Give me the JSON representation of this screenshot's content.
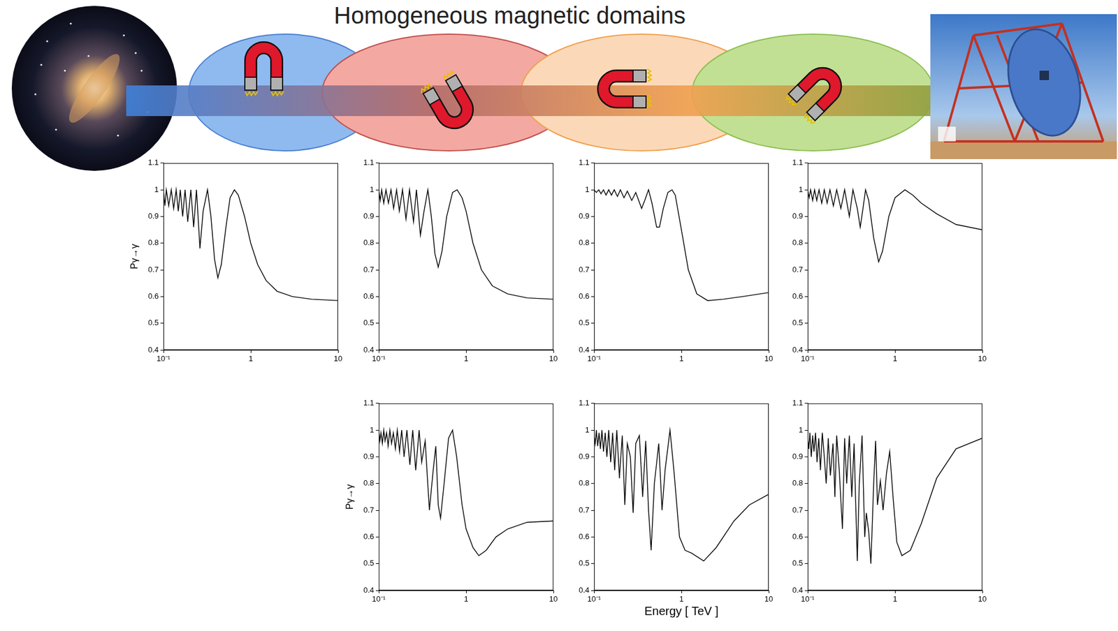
{
  "title": "Homogeneous magnetic domains",
  "chart_data": [
    {
      "type": "line",
      "ylabel": "Pγ→γ",
      "color": "#000000",
      "log": "x",
      "grid": false,
      "xlim": [
        0.1,
        10
      ],
      "xticks": [
        {
          "value": 0.1,
          "label": "10⁻¹"
        },
        1,
        10
      ],
      "ylim": [
        0.4,
        1.1
      ],
      "yticks": [
        0.4,
        0.5,
        0.6,
        0.7,
        0.8,
        0.9,
        1,
        1.1
      ],
      "x": [
        0.1,
        0.104,
        0.108,
        0.115,
        0.123,
        0.131,
        0.14,
        0.148,
        0.156,
        0.166,
        0.177,
        0.19,
        0.206,
        0.222,
        0.239,
        0.262,
        0.285,
        0.32,
        0.35,
        0.385,
        0.42,
        0.46,
        0.52,
        0.58,
        0.65,
        0.72,
        0.85,
        1,
        1.2,
        1.5,
        2,
        3,
        5,
        10
      ],
      "values": [
        1,
        0.94,
        1,
        0.94,
        1,
        0.93,
        1,
        0.92,
        1,
        0.9,
        1,
        0.88,
        1,
        0.86,
        1,
        0.78,
        0.92,
        1,
        0.9,
        0.74,
        0.67,
        0.72,
        0.86,
        0.97,
        1,
        0.98,
        0.9,
        0.8,
        0.72,
        0.66,
        0.62,
        0.6,
        0.59,
        0.585
      ]
    },
    {
      "type": "line",
      "color": "#000000",
      "log": "x",
      "grid": false,
      "xlim": [
        0.1,
        10
      ],
      "xticks": [
        {
          "value": 0.1,
          "label": "10⁻¹"
        },
        1,
        10
      ],
      "ylim": [
        0.4,
        1.1
      ],
      "yticks": [
        0.4,
        0.5,
        0.6,
        0.7,
        0.8,
        0.9,
        1,
        1.1
      ],
      "x": [
        0.1,
        0.104,
        0.108,
        0.114,
        0.121,
        0.129,
        0.138,
        0.148,
        0.16,
        0.172,
        0.187,
        0.205,
        0.225,
        0.25,
        0.27,
        0.3,
        0.33,
        0.365,
        0.4,
        0.44,
        0.48,
        0.53,
        0.6,
        0.7,
        0.79,
        0.9,
        1,
        1.2,
        1.5,
        2,
        3,
        5,
        10
      ],
      "values": [
        1,
        0.96,
        1,
        0.95,
        1,
        0.95,
        1,
        0.93,
        1,
        0.92,
        1,
        0.89,
        1,
        0.88,
        1,
        0.83,
        0.92,
        1,
        0.9,
        0.76,
        0.71,
        0.77,
        0.9,
        0.99,
        1,
        0.97,
        0.92,
        0.8,
        0.7,
        0.64,
        0.61,
        0.595,
        0.59
      ]
    },
    {
      "type": "line",
      "color": "#000000",
      "log": "x",
      "grid": false,
      "xlim": [
        0.1,
        10
      ],
      "xticks": [
        {
          "value": 0.1,
          "label": "10⁻¹"
        },
        1,
        10
      ],
      "ylim": [
        0.4,
        1.1
      ],
      "yticks": [
        0.4,
        0.5,
        0.6,
        0.7,
        0.8,
        0.9,
        1,
        1.1
      ],
      "x": [
        0.1,
        0.106,
        0.113,
        0.12,
        0.128,
        0.137,
        0.147,
        0.158,
        0.17,
        0.185,
        0.2,
        0.22,
        0.24,
        0.27,
        0.3,
        0.35,
        0.38,
        0.42,
        0.46,
        0.52,
        0.56,
        0.62,
        0.7,
        0.78,
        0.85,
        1,
        1.2,
        1.5,
        2,
        3,
        5,
        10
      ],
      "values": [
        1,
        0.99,
        1,
        0.985,
        1,
        0.98,
        1,
        0.98,
        1,
        0.975,
        1,
        0.97,
        0.995,
        0.96,
        0.99,
        0.93,
        0.96,
        1,
        0.95,
        0.86,
        0.86,
        0.93,
        0.99,
        1,
        0.98,
        0.85,
        0.7,
        0.61,
        0.585,
        0.59,
        0.6,
        0.615
      ]
    },
    {
      "type": "line",
      "color": "#000000",
      "log": "x",
      "grid": false,
      "xlim": [
        0.1,
        10
      ],
      "xticks": [
        {
          "value": 0.1,
          "label": "10⁻¹"
        },
        1,
        10
      ],
      "ylim": [
        0.4,
        1.1
      ],
      "yticks": [
        0.4,
        0.5,
        0.6,
        0.7,
        0.8,
        0.9,
        1,
        1.1
      ],
      "x": [
        0.1,
        0.104,
        0.108,
        0.114,
        0.12,
        0.127,
        0.135,
        0.145,
        0.155,
        0.167,
        0.18,
        0.197,
        0.215,
        0.24,
        0.265,
        0.3,
        0.33,
        0.37,
        0.4,
        0.43,
        0.46,
        0.5,
        0.57,
        0.65,
        0.72,
        0.85,
        1,
        1.3,
        1.6,
        2,
        3,
        5,
        10
      ],
      "values": [
        1,
        0.97,
        1,
        0.96,
        1,
        0.96,
        1,
        0.95,
        1,
        0.95,
        1,
        0.94,
        1,
        0.93,
        1,
        0.9,
        1,
        0.93,
        0.86,
        0.93,
        1,
        0.96,
        0.82,
        0.73,
        0.77,
        0.9,
        0.97,
        1,
        0.98,
        0.95,
        0.91,
        0.87,
        0.85
      ]
    },
    {
      "type": "line",
      "ylabel": "Pγ→γ",
      "color": "#000000",
      "log": "x",
      "grid": false,
      "xlim": [
        0.1,
        10
      ],
      "xticks": [
        {
          "value": 0.1,
          "label": "10⁻¹"
        },
        1,
        10
      ],
      "ylim": [
        0.4,
        1.1
      ],
      "yticks": [
        0.4,
        0.5,
        0.6,
        0.7,
        0.8,
        0.9,
        1,
        1.1
      ],
      "x": [
        0.1,
        0.103,
        0.106,
        0.11,
        0.114,
        0.118,
        0.123,
        0.128,
        0.134,
        0.14,
        0.147,
        0.155,
        0.163,
        0.173,
        0.183,
        0.195,
        0.21,
        0.227,
        0.245,
        0.265,
        0.29,
        0.31,
        0.34,
        0.38,
        0.42,
        0.45,
        0.48,
        0.51,
        0.56,
        0.63,
        0.7,
        0.78,
        0.9,
        1,
        1.2,
        1.4,
        1.7,
        2.2,
        3,
        5,
        10
      ],
      "values": [
        1,
        0.96,
        0.99,
        0.95,
        1,
        0.96,
        0.99,
        0.94,
        1,
        0.95,
        0.99,
        0.93,
        1,
        0.92,
        1,
        0.9,
        1,
        0.87,
        1,
        0.85,
        1,
        0.88,
        0.96,
        0.7,
        0.85,
        0.94,
        0.72,
        0.67,
        0.8,
        0.97,
        1,
        0.9,
        0.72,
        0.63,
        0.56,
        0.53,
        0.55,
        0.6,
        0.63,
        0.655,
        0.66
      ]
    },
    {
      "type": "line",
      "xlabel": "Energy [ TeV ]",
      "color": "#000000",
      "log": "x",
      "grid": false,
      "xlim": [
        0.1,
        10
      ],
      "xticks": [
        {
          "value": 0.1,
          "label": "10⁻¹"
        },
        1,
        10
      ],
      "ylim": [
        0.4,
        1.1
      ],
      "yticks": [
        0.4,
        0.5,
        0.6,
        0.7,
        0.8,
        0.9,
        1,
        1.1
      ],
      "x": [
        0.1,
        0.103,
        0.106,
        0.11,
        0.114,
        0.118,
        0.123,
        0.128,
        0.134,
        0.14,
        0.147,
        0.155,
        0.163,
        0.172,
        0.182,
        0.195,
        0.21,
        0.225,
        0.24,
        0.26,
        0.28,
        0.3,
        0.33,
        0.36,
        0.39,
        0.42,
        0.45,
        0.49,
        0.55,
        0.6,
        0.65,
        0.74,
        0.82,
        0.95,
        1.1,
        1.3,
        1.8,
        2.5,
        4,
        6,
        10
      ],
      "values": [
        0.98,
        0.95,
        1,
        0.94,
        0.99,
        0.93,
        1,
        0.92,
        0.99,
        0.9,
        1,
        0.88,
        0.99,
        0.85,
        1,
        0.82,
        0.98,
        0.72,
        0.95,
        0.9,
        0.69,
        0.95,
        0.98,
        0.75,
        0.96,
        0.7,
        0.55,
        0.8,
        0.95,
        0.7,
        0.85,
        1,
        0.85,
        0.6,
        0.55,
        0.54,
        0.51,
        0.56,
        0.66,
        0.72,
        0.76
      ]
    },
    {
      "type": "line",
      "color": "#000000",
      "log": "x",
      "grid": false,
      "xlim": [
        0.1,
        10
      ],
      "xticks": [
        {
          "value": 0.1,
          "label": "10⁻¹"
        },
        1,
        10
      ],
      "ylim": [
        0.4,
        1.1
      ],
      "yticks": [
        0.4,
        0.5,
        0.6,
        0.7,
        0.8,
        0.9,
        1,
        1.1
      ],
      "x": [
        0.1,
        0.103,
        0.106,
        0.11,
        0.114,
        0.118,
        0.123,
        0.128,
        0.134,
        0.14,
        0.147,
        0.155,
        0.163,
        0.172,
        0.182,
        0.195,
        0.205,
        0.215,
        0.23,
        0.25,
        0.265,
        0.28,
        0.3,
        0.32,
        0.34,
        0.37,
        0.39,
        0.42,
        0.45,
        0.47,
        0.5,
        0.53,
        0.57,
        0.6,
        0.63,
        0.68,
        0.73,
        0.8,
        0.87,
        0.95,
        1.05,
        1.2,
        1.5,
        2,
        3,
        5,
        10
      ],
      "values": [
        0.97,
        0.93,
        0.99,
        0.9,
        0.98,
        0.92,
        0.99,
        0.88,
        0.97,
        0.85,
        0.99,
        0.9,
        0.8,
        0.97,
        0.83,
        0.95,
        0.75,
        0.98,
        0.85,
        0.63,
        0.97,
        0.8,
        0.98,
        0.75,
        0.95,
        0.51,
        0.8,
        0.98,
        0.6,
        0.69,
        0.62,
        0.5,
        0.8,
        0.96,
        0.72,
        0.81,
        0.7,
        0.84,
        0.92,
        0.75,
        0.58,
        0.53,
        0.55,
        0.65,
        0.82,
        0.93,
        0.97
      ]
    }
  ]
}
